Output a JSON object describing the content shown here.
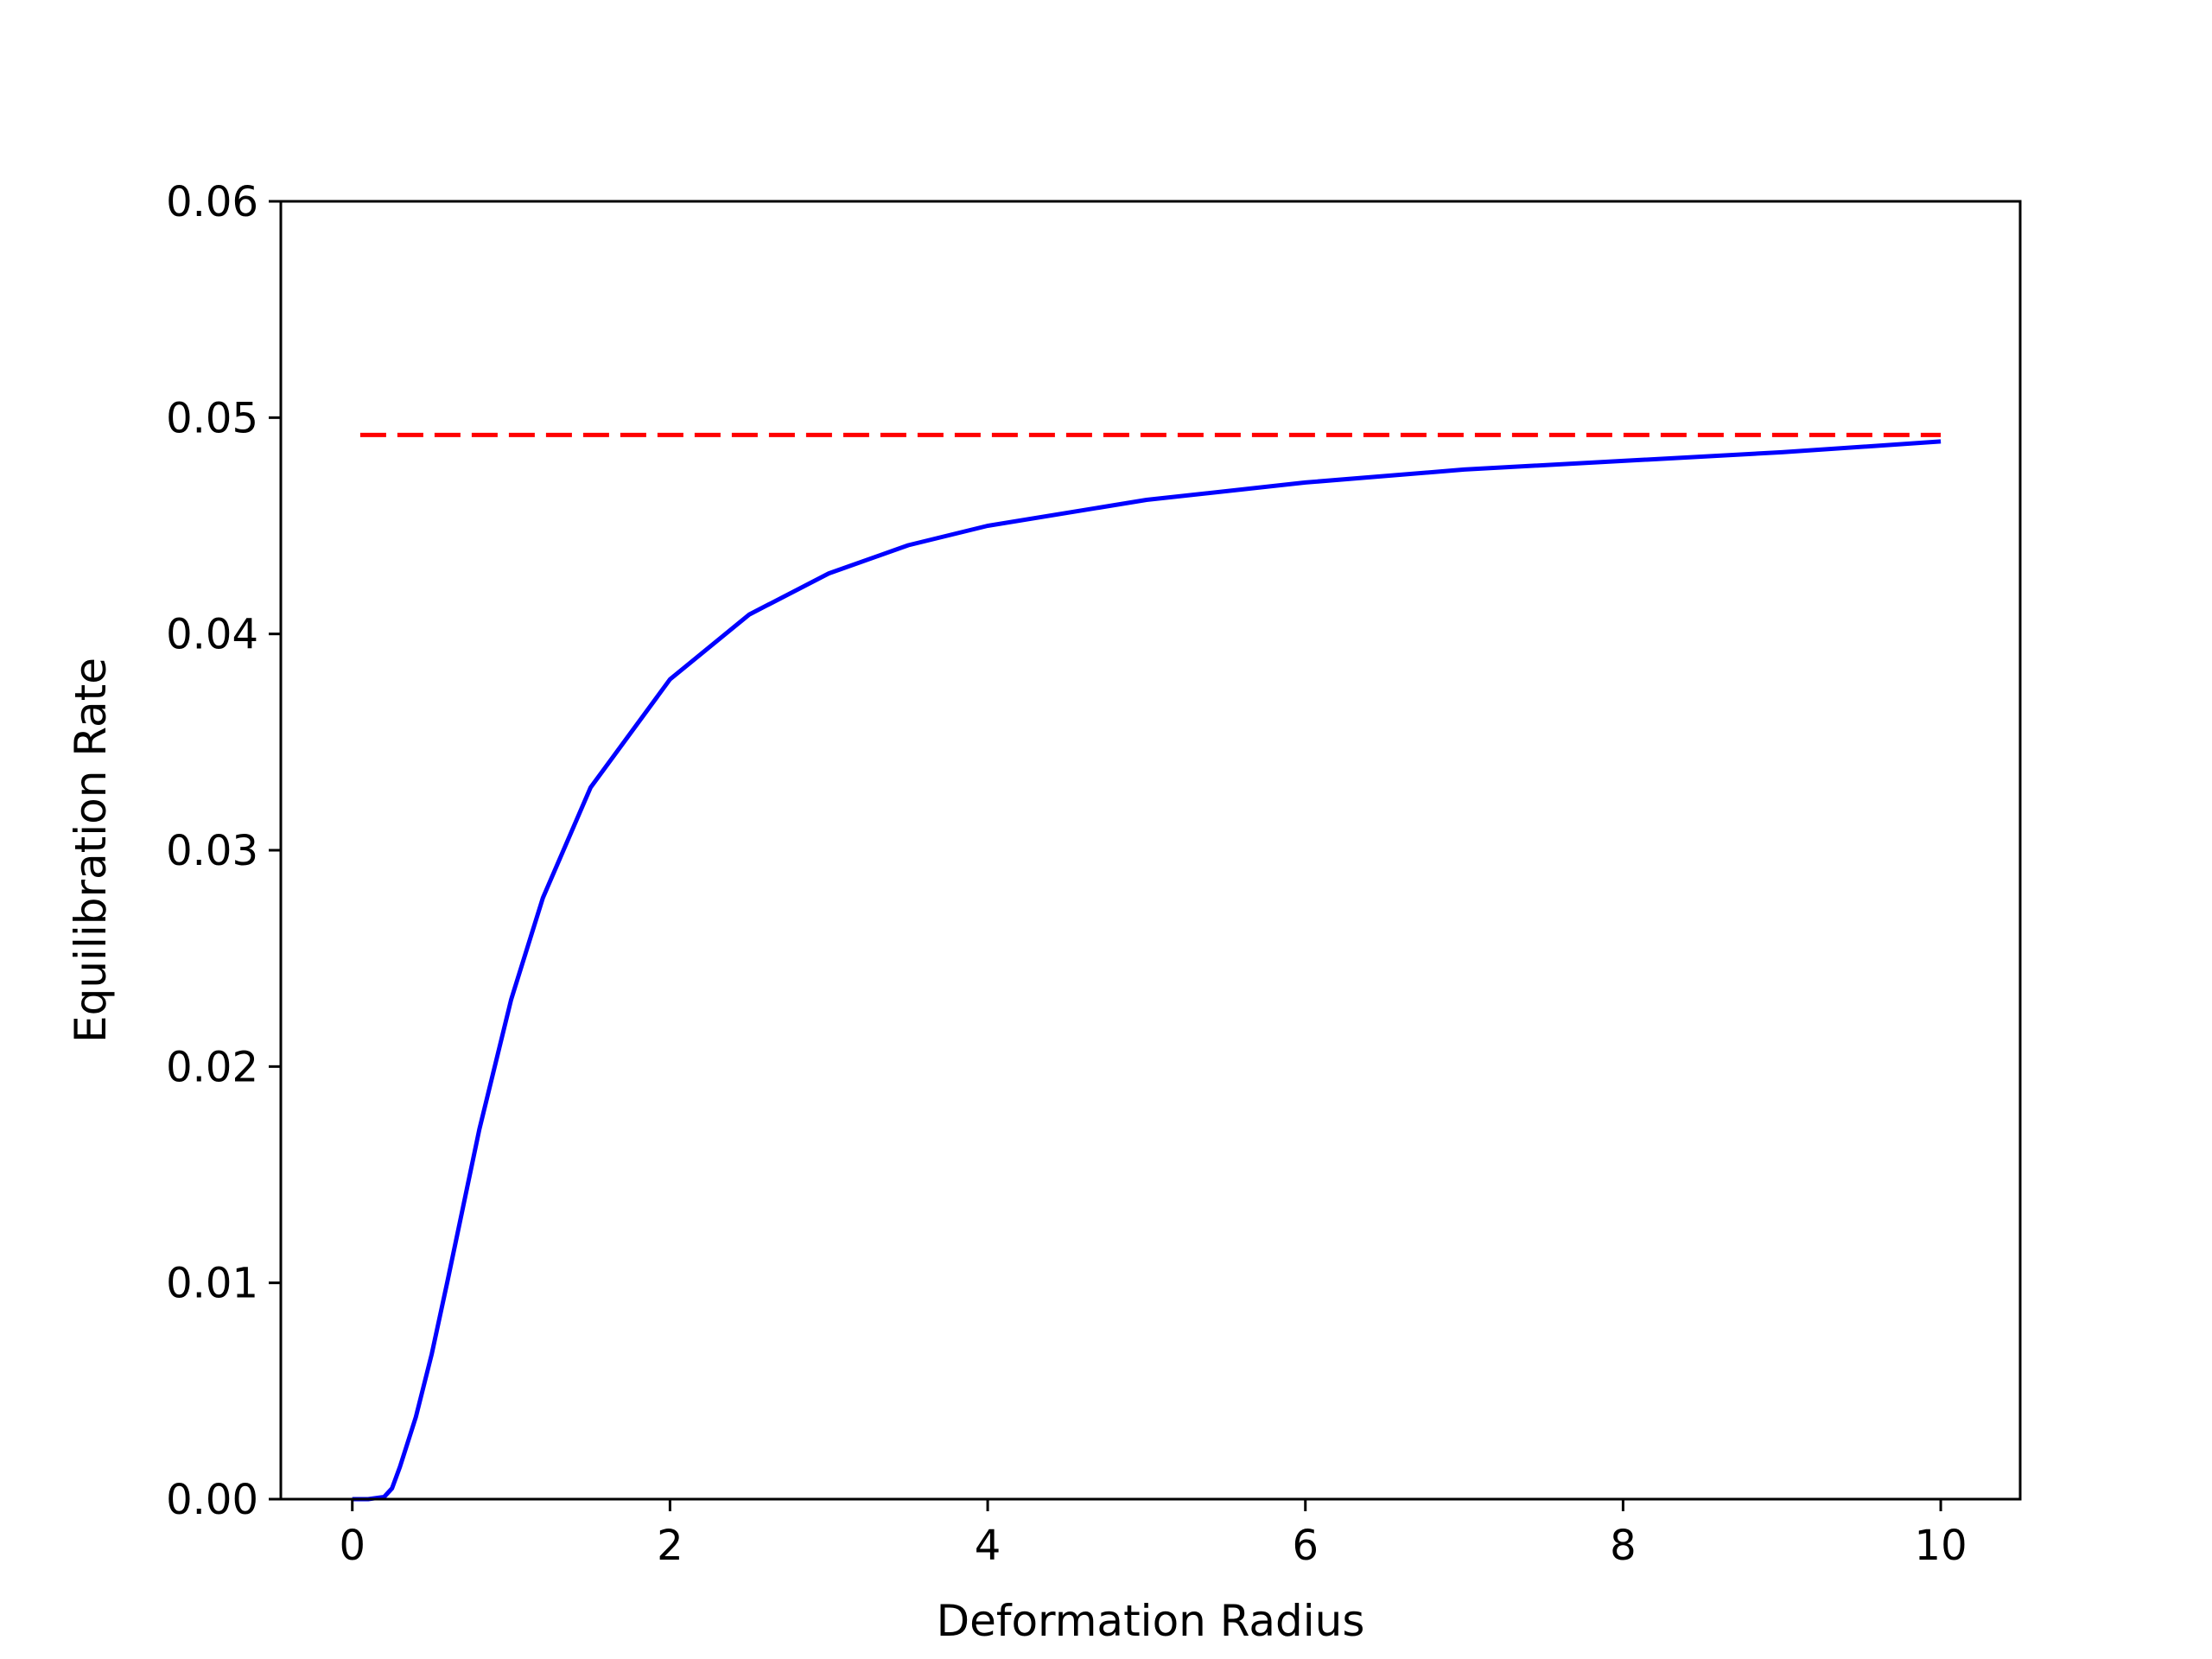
{
  "chart_data": {
    "type": "line",
    "title": "",
    "xlabel": "Deformation Radius",
    "ylabel": "Equilibration Rate",
    "xlim": [
      -0.45,
      10.5
    ],
    "ylim": [
      0.0,
      0.06
    ],
    "xticks": [
      0,
      2,
      4,
      6,
      8,
      10
    ],
    "xtick_labels": [
      "0",
      "2",
      "4",
      "6",
      "8",
      "10"
    ],
    "yticks": [
      0.0,
      0.01,
      0.02,
      0.03,
      0.04,
      0.05,
      0.06
    ],
    "ytick_labels": [
      "0.00",
      "0.01",
      "0.02",
      "0.03",
      "0.04",
      "0.05",
      "0.06"
    ],
    "grid": false,
    "legend": "none",
    "series": [
      {
        "style": "solid",
        "color": "#0000ff",
        "x": [
          0.0,
          0.1,
          0.2,
          0.25,
          0.3,
          0.4,
          0.5,
          0.6,
          0.8,
          1.0,
          1.2,
          1.5,
          2.0,
          2.5,
          3.0,
          3.5,
          4.0,
          5.0,
          6.0,
          7.0,
          8.0,
          9.0,
          10.0
        ],
        "y": [
          0.0,
          0.0,
          0.0001,
          0.0005,
          0.0015,
          0.0038,
          0.0067,
          0.0101,
          0.0171,
          0.0231,
          0.0278,
          0.0329,
          0.0379,
          0.0409,
          0.0428,
          0.0441,
          0.045,
          0.0462,
          0.047,
          0.0476,
          0.048,
          0.0484,
          0.0489
        ]
      },
      {
        "style": "dashed",
        "color": "#ff0000",
        "x": [
          0.05,
          10.0
        ],
        "y": [
          0.0492,
          0.0492
        ]
      }
    ]
  }
}
